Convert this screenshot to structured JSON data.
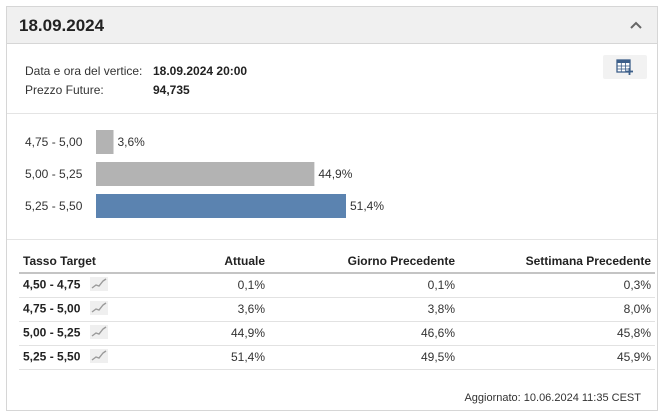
{
  "header": {
    "title": "18.09.2024"
  },
  "info": {
    "vertex_label": "Data e ora del vertice:",
    "vertex_value": "18.09.2024 20:00",
    "future_label": "Prezzo Future:",
    "future_value": "94,735"
  },
  "chart_data": {
    "type": "bar",
    "orientation": "horizontal",
    "categories": [
      "4,75 - 5,00",
      "5,00 - 5,25",
      "5,25 - 5,50"
    ],
    "values": [
      3.6,
      44.9,
      51.4
    ],
    "value_labels": [
      "3,6%",
      "44,9%",
      "51,4%"
    ],
    "colors": [
      "#b3b3b3",
      "#b3b3b3",
      "#5b83b0"
    ],
    "title": "",
    "xlabel": "",
    "ylabel": "",
    "xlim": [
      0,
      51.4
    ],
    "grid": false
  },
  "table": {
    "headers": [
      "Tasso Target",
      "Attuale",
      "Giorno Precedente",
      "Settimana Precedente"
    ],
    "rows": [
      {
        "range": "4,50 - 4,75",
        "current": "0,1%",
        "prev_day": "0,1%",
        "prev_week": "0,3%"
      },
      {
        "range": "4,75 - 5,00",
        "current": "3,6%",
        "prev_day": "3,8%",
        "prev_week": "8,0%"
      },
      {
        "range": "5,00 - 5,25",
        "current": "44,9%",
        "prev_day": "46,6%",
        "prev_week": "45,8%"
      },
      {
        "range": "5,25 - 5,50",
        "current": "51,4%",
        "prev_day": "49,5%",
        "prev_week": "45,9%"
      }
    ]
  },
  "footer": {
    "updated": "Aggiornato: 10.06.2024 11:35 CEST"
  },
  "icons": {
    "collapse": "chevron-up-icon",
    "calendar": "calendar-add-icon",
    "sparkline": "trend-chart-icon"
  }
}
